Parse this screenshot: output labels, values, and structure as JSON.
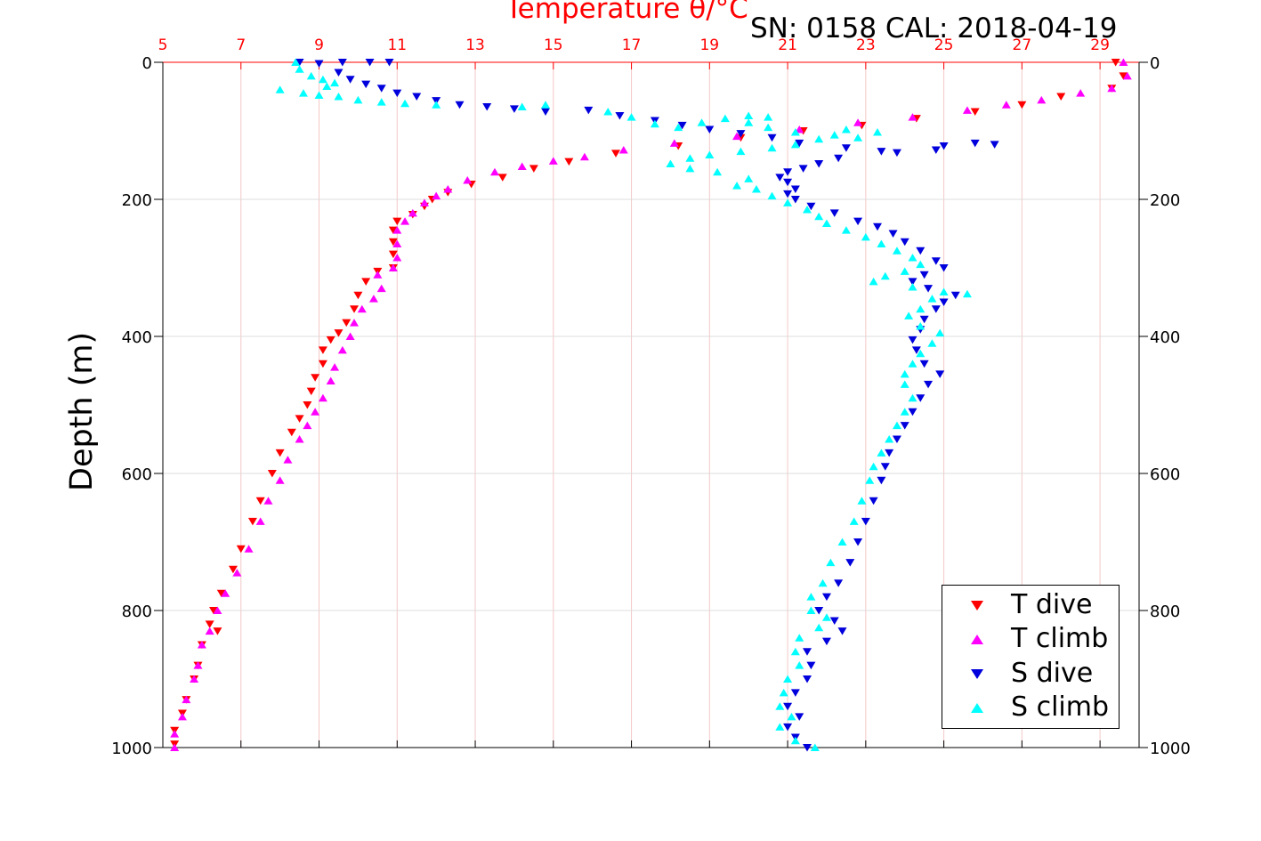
{
  "title": "Temperature θ/°C",
  "subtitle": "SN: 0158  CAL: 2018-04-19",
  "colors": {
    "t_dive": "#ff0000",
    "t_climb": "#ff00ff",
    "s_dive": "#0000dd",
    "s_climb": "#00ffff",
    "top_axis": "#ff0000",
    "grid": "#d9d9d9"
  },
  "chart_data": {
    "type": "scatter",
    "title": "Temperature θ/°C",
    "subtitle": "SN: 0158  CAL: 2018-04-19",
    "xlabel": "",
    "ylabel": "Depth (m)",
    "xlim": [
      5,
      30
    ],
    "ylim": [
      0,
      1000
    ],
    "y_reversed": true,
    "x_ticks": [
      "5",
      "7",
      "9",
      "11",
      "13",
      "15",
      "17",
      "19",
      "21",
      "23",
      "25",
      "27",
      "29"
    ],
    "y_ticks": [
      "0",
      "200",
      "400",
      "600",
      "800",
      "1000"
    ],
    "grid": true,
    "legend_position": "bottom-right",
    "series": [
      {
        "name": "T dive",
        "marker": "triangle-down",
        "color": "#ff0000",
        "points": [
          [
            29.4,
            0
          ],
          [
            29.6,
            20
          ],
          [
            29.3,
            38
          ],
          [
            28.0,
            50
          ],
          [
            27.0,
            62
          ],
          [
            25.8,
            72
          ],
          [
            24.3,
            82
          ],
          [
            22.9,
            92
          ],
          [
            21.4,
            100
          ],
          [
            19.8,
            110
          ],
          [
            18.2,
            122
          ],
          [
            16.6,
            133
          ],
          [
            15.4,
            145
          ],
          [
            14.5,
            155
          ],
          [
            13.7,
            168
          ],
          [
            12.9,
            178
          ],
          [
            12.3,
            190
          ],
          [
            11.9,
            200
          ],
          [
            11.7,
            210
          ],
          [
            11.4,
            222
          ],
          [
            11.0,
            232
          ],
          [
            10.9,
            245
          ],
          [
            10.9,
            262
          ],
          [
            10.9,
            280
          ],
          [
            10.9,
            300
          ],
          [
            10.5,
            305
          ],
          [
            10.2,
            320
          ],
          [
            10.0,
            340
          ],
          [
            9.9,
            360
          ],
          [
            9.7,
            380
          ],
          [
            9.5,
            395
          ],
          [
            9.3,
            405
          ],
          [
            9.1,
            420
          ],
          [
            9.1,
            440
          ],
          [
            8.9,
            460
          ],
          [
            8.8,
            480
          ],
          [
            8.7,
            500
          ],
          [
            8.5,
            520
          ],
          [
            8.3,
            540
          ],
          [
            8.0,
            570
          ],
          [
            7.8,
            600
          ],
          [
            7.5,
            640
          ],
          [
            7.3,
            670
          ],
          [
            7.0,
            710
          ],
          [
            6.8,
            740
          ],
          [
            6.5,
            775
          ],
          [
            6.3,
            800
          ],
          [
            6.2,
            820
          ],
          [
            6.4,
            830
          ],
          [
            6.0,
            850
          ],
          [
            5.9,
            880
          ],
          [
            5.8,
            900
          ],
          [
            5.6,
            930
          ],
          [
            5.5,
            950
          ],
          [
            5.3,
            975
          ],
          [
            5.3,
            995
          ]
        ]
      },
      {
        "name": "T climb",
        "marker": "triangle-up",
        "color": "#ff00ff",
        "points": [
          [
            29.6,
            0
          ],
          [
            29.7,
            20
          ],
          [
            29.3,
            38
          ],
          [
            28.5,
            45
          ],
          [
            27.5,
            55
          ],
          [
            26.6,
            62
          ],
          [
            25.6,
            70
          ],
          [
            24.2,
            80
          ],
          [
            22.8,
            88
          ],
          [
            21.3,
            98
          ],
          [
            19.7,
            108
          ],
          [
            18.1,
            118
          ],
          [
            16.8,
            128
          ],
          [
            15.8,
            138
          ],
          [
            15.0,
            144
          ],
          [
            14.2,
            152
          ],
          [
            13.5,
            160
          ],
          [
            12.8,
            172
          ],
          [
            12.3,
            185
          ],
          [
            12.0,
            195
          ],
          [
            11.7,
            205
          ],
          [
            11.4,
            220
          ],
          [
            11.2,
            232
          ],
          [
            11.0,
            245
          ],
          [
            11.0,
            265
          ],
          [
            11.0,
            285
          ],
          [
            10.9,
            300
          ],
          [
            10.5,
            310
          ],
          [
            10.6,
            330
          ],
          [
            10.4,
            345
          ],
          [
            10.1,
            360
          ],
          [
            9.9,
            380
          ],
          [
            9.8,
            400
          ],
          [
            9.6,
            420
          ],
          [
            9.4,
            445
          ],
          [
            9.3,
            465
          ],
          [
            9.1,
            490
          ],
          [
            8.9,
            510
          ],
          [
            8.7,
            530
          ],
          [
            8.5,
            550
          ],
          [
            8.2,
            580
          ],
          [
            8.0,
            610
          ],
          [
            7.7,
            640
          ],
          [
            7.5,
            670
          ],
          [
            7.2,
            710
          ],
          [
            6.9,
            745
          ],
          [
            6.6,
            775
          ],
          [
            6.4,
            800
          ],
          [
            6.2,
            830
          ],
          [
            6.0,
            850
          ],
          [
            5.9,
            880
          ],
          [
            5.8,
            900
          ],
          [
            5.6,
            930
          ],
          [
            5.5,
            955
          ],
          [
            5.3,
            980
          ],
          [
            5.3,
            1000
          ]
        ]
      },
      {
        "name": "S dive",
        "marker": "triangle-down",
        "color": "#0000dd",
        "points": [
          [
            8.5,
            0
          ],
          [
            9.0,
            2
          ],
          [
            9.6,
            0
          ],
          [
            10.3,
            0
          ],
          [
            10.8,
            0
          ],
          [
            9.5,
            15
          ],
          [
            9.8,
            25
          ],
          [
            10.2,
            32
          ],
          [
            10.6,
            38
          ],
          [
            11.0,
            45
          ],
          [
            11.5,
            50
          ],
          [
            12.0,
            56
          ],
          [
            12.6,
            62
          ],
          [
            13.3,
            65
          ],
          [
            14.0,
            68
          ],
          [
            14.8,
            72
          ],
          [
            15.9,
            70
          ],
          [
            16.7,
            78
          ],
          [
            17.6,
            85
          ],
          [
            18.3,
            92
          ],
          [
            19.0,
            98
          ],
          [
            19.8,
            104
          ],
          [
            20.6,
            110
          ],
          [
            21.3,
            118
          ],
          [
            22.5,
            125
          ],
          [
            23.8,
            132
          ],
          [
            25.0,
            122
          ],
          [
            25.8,
            118
          ],
          [
            26.3,
            120
          ],
          [
            24.8,
            128
          ],
          [
            23.4,
            130
          ],
          [
            22.3,
            140
          ],
          [
            21.8,
            148
          ],
          [
            21.4,
            155
          ],
          [
            21.0,
            160
          ],
          [
            20.8,
            168
          ],
          [
            21.0,
            175
          ],
          [
            21.2,
            185
          ],
          [
            21.0,
            192
          ],
          [
            21.2,
            200
          ],
          [
            21.6,
            210
          ],
          [
            22.2,
            220
          ],
          [
            22.8,
            232
          ],
          [
            23.3,
            240
          ],
          [
            23.7,
            250
          ],
          [
            24.0,
            262
          ],
          [
            24.4,
            275
          ],
          [
            24.8,
            290
          ],
          [
            25.0,
            300
          ],
          [
            24.5,
            310
          ],
          [
            24.2,
            320
          ],
          [
            24.6,
            330
          ],
          [
            25.3,
            340
          ],
          [
            25.0,
            350
          ],
          [
            24.8,
            360
          ],
          [
            24.5,
            375
          ],
          [
            24.4,
            390
          ],
          [
            24.2,
            405
          ],
          [
            24.3,
            420
          ],
          [
            24.5,
            440
          ],
          [
            24.9,
            455
          ],
          [
            24.6,
            470
          ],
          [
            24.4,
            490
          ],
          [
            24.2,
            510
          ],
          [
            24.0,
            530
          ],
          [
            23.8,
            550
          ],
          [
            23.6,
            570
          ],
          [
            23.5,
            590
          ],
          [
            23.4,
            610
          ],
          [
            23.2,
            640
          ],
          [
            23.0,
            670
          ],
          [
            22.8,
            700
          ],
          [
            22.6,
            730
          ],
          [
            22.3,
            760
          ],
          [
            22.0,
            780
          ],
          [
            21.8,
            800
          ],
          [
            22.2,
            815
          ],
          [
            22.4,
            830
          ],
          [
            22.0,
            845
          ],
          [
            21.5,
            860
          ],
          [
            21.6,
            880
          ],
          [
            21.5,
            900
          ],
          [
            21.2,
            920
          ],
          [
            21.0,
            940
          ],
          [
            21.3,
            955
          ],
          [
            21.0,
            970
          ],
          [
            21.2,
            985
          ],
          [
            21.5,
            1000
          ]
        ]
      },
      {
        "name": "S climb",
        "marker": "triangle-up",
        "color": "#00ffff",
        "points": [
          [
            8.4,
            0
          ],
          [
            8.5,
            10
          ],
          [
            8.8,
            20
          ],
          [
            9.1,
            25
          ],
          [
            9.4,
            30
          ],
          [
            9.2,
            35
          ],
          [
            8.0,
            40
          ],
          [
            8.6,
            45
          ],
          [
            9.0,
            48
          ],
          [
            9.5,
            50
          ],
          [
            10.0,
            55
          ],
          [
            10.6,
            58
          ],
          [
            11.2,
            60
          ],
          [
            12.0,
            62
          ],
          [
            14.2,
            65
          ],
          [
            14.8,
            62
          ],
          [
            16.4,
            72
          ],
          [
            17.0,
            80
          ],
          [
            17.6,
            90
          ],
          [
            18.2,
            95
          ],
          [
            18.8,
            88
          ],
          [
            19.4,
            82
          ],
          [
            20.0,
            78
          ],
          [
            20.5,
            80
          ],
          [
            20.0,
            88
          ],
          [
            20.5,
            95
          ],
          [
            21.2,
            102
          ],
          [
            22.2,
            106
          ],
          [
            22.8,
            110
          ],
          [
            23.3,
            102
          ],
          [
            22.5,
            98
          ],
          [
            21.8,
            112
          ],
          [
            21.2,
            120
          ],
          [
            20.6,
            125
          ],
          [
            19.8,
            130
          ],
          [
            19.0,
            135
          ],
          [
            18.5,
            140
          ],
          [
            18.0,
            148
          ],
          [
            18.5,
            155
          ],
          [
            19.2,
            160
          ],
          [
            20.0,
            170
          ],
          [
            19.7,
            180
          ],
          [
            20.2,
            185
          ],
          [
            20.6,
            195
          ],
          [
            21.0,
            205
          ],
          [
            21.5,
            215
          ],
          [
            21.8,
            225
          ],
          [
            22.0,
            235
          ],
          [
            22.5,
            245
          ],
          [
            23.0,
            255
          ],
          [
            23.4,
            265
          ],
          [
            23.8,
            275
          ],
          [
            24.2,
            285
          ],
          [
            24.4,
            295
          ],
          [
            24.0,
            305
          ],
          [
            23.5,
            312
          ],
          [
            23.2,
            320
          ],
          [
            24.2,
            328
          ],
          [
            25.0,
            335
          ],
          [
            25.6,
            338
          ],
          [
            24.7,
            345
          ],
          [
            24.4,
            360
          ],
          [
            24.1,
            370
          ],
          [
            24.4,
            385
          ],
          [
            24.9,
            395
          ],
          [
            24.7,
            410
          ],
          [
            24.4,
            425
          ],
          [
            24.2,
            440
          ],
          [
            24.0,
            455
          ],
          [
            24.0,
            470
          ],
          [
            24.2,
            490
          ],
          [
            24.0,
            510
          ],
          [
            23.8,
            530
          ],
          [
            23.6,
            550
          ],
          [
            23.4,
            570
          ],
          [
            23.2,
            590
          ],
          [
            23.1,
            610
          ],
          [
            22.9,
            640
          ],
          [
            22.7,
            670
          ],
          [
            22.4,
            700
          ],
          [
            22.1,
            730
          ],
          [
            21.9,
            760
          ],
          [
            21.6,
            780
          ],
          [
            21.6,
            800
          ],
          [
            22.0,
            810
          ],
          [
            21.8,
            825
          ],
          [
            21.3,
            840
          ],
          [
            21.2,
            860
          ],
          [
            21.3,
            880
          ],
          [
            21.0,
            900
          ],
          [
            20.9,
            920
          ],
          [
            20.8,
            940
          ],
          [
            21.1,
            955
          ],
          [
            20.8,
            970
          ],
          [
            21.2,
            990
          ],
          [
            21.7,
            1000
          ]
        ]
      }
    ]
  }
}
